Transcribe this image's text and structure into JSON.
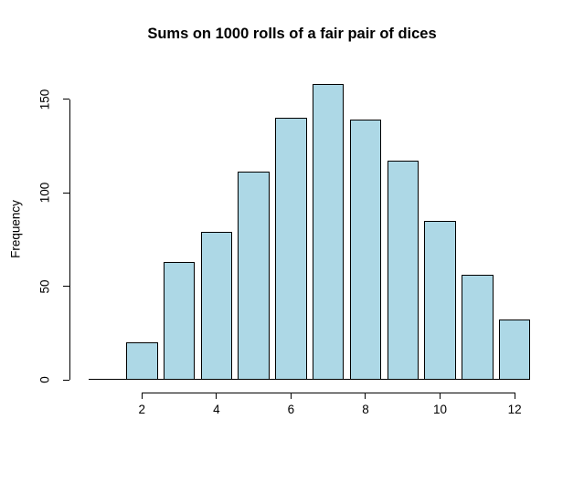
{
  "chart_data": {
    "type": "bar",
    "title": "Sums on 1000 rolls of a fair pair of dices",
    "xlabel": "",
    "ylabel": "Frequency",
    "categories": [
      2,
      3,
      4,
      5,
      6,
      7,
      8,
      9,
      10,
      11,
      12
    ],
    "values": [
      20,
      63,
      79,
      111,
      140,
      158,
      139,
      117,
      85,
      56,
      32
    ],
    "total": 1000,
    "x_ticks": [
      2,
      4,
      6,
      8,
      10,
      12
    ],
    "y_ticks": [
      0,
      50,
      100,
      150
    ],
    "ylim": [
      0,
      160
    ],
    "grid": false,
    "legend": "none",
    "bar_fill": "#ADD8E6",
    "bar_border": "#000000",
    "background": "#FFFFFF",
    "text_color": "#000000"
  }
}
